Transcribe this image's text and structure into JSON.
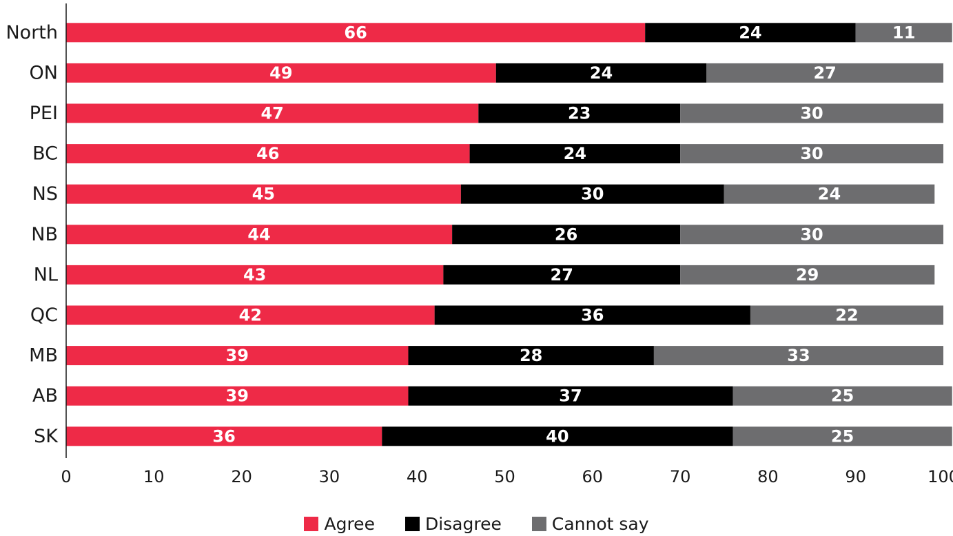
{
  "chart_data": {
    "type": "bar",
    "orientation": "horizontal",
    "stacked": true,
    "categories": [
      "North",
      "ON",
      "PEI",
      "BC",
      "NS",
      "NB",
      "NL",
      "QC",
      "MB",
      "AB",
      "SK"
    ],
    "series": [
      {
        "name": "Agree",
        "color": "#ee2a47",
        "values": [
          66,
          49,
          47,
          46,
          45,
          44,
          43,
          42,
          39,
          39,
          36
        ]
      },
      {
        "name": "Disagree",
        "color": "#000000",
        "values": [
          24,
          24,
          23,
          24,
          30,
          26,
          27,
          36,
          28,
          37,
          40
        ]
      },
      {
        "name": "Cannot say",
        "color": "#6d6d6f",
        "values": [
          11,
          27,
          30,
          30,
          24,
          30,
          29,
          22,
          33,
          25,
          25
        ]
      }
    ],
    "xlim": [
      0,
      100
    ],
    "xticks": [
      0,
      10,
      20,
      30,
      40,
      50,
      60,
      70,
      80,
      90,
      100
    ],
    "grid": false,
    "legend_position": "bottom-center"
  }
}
